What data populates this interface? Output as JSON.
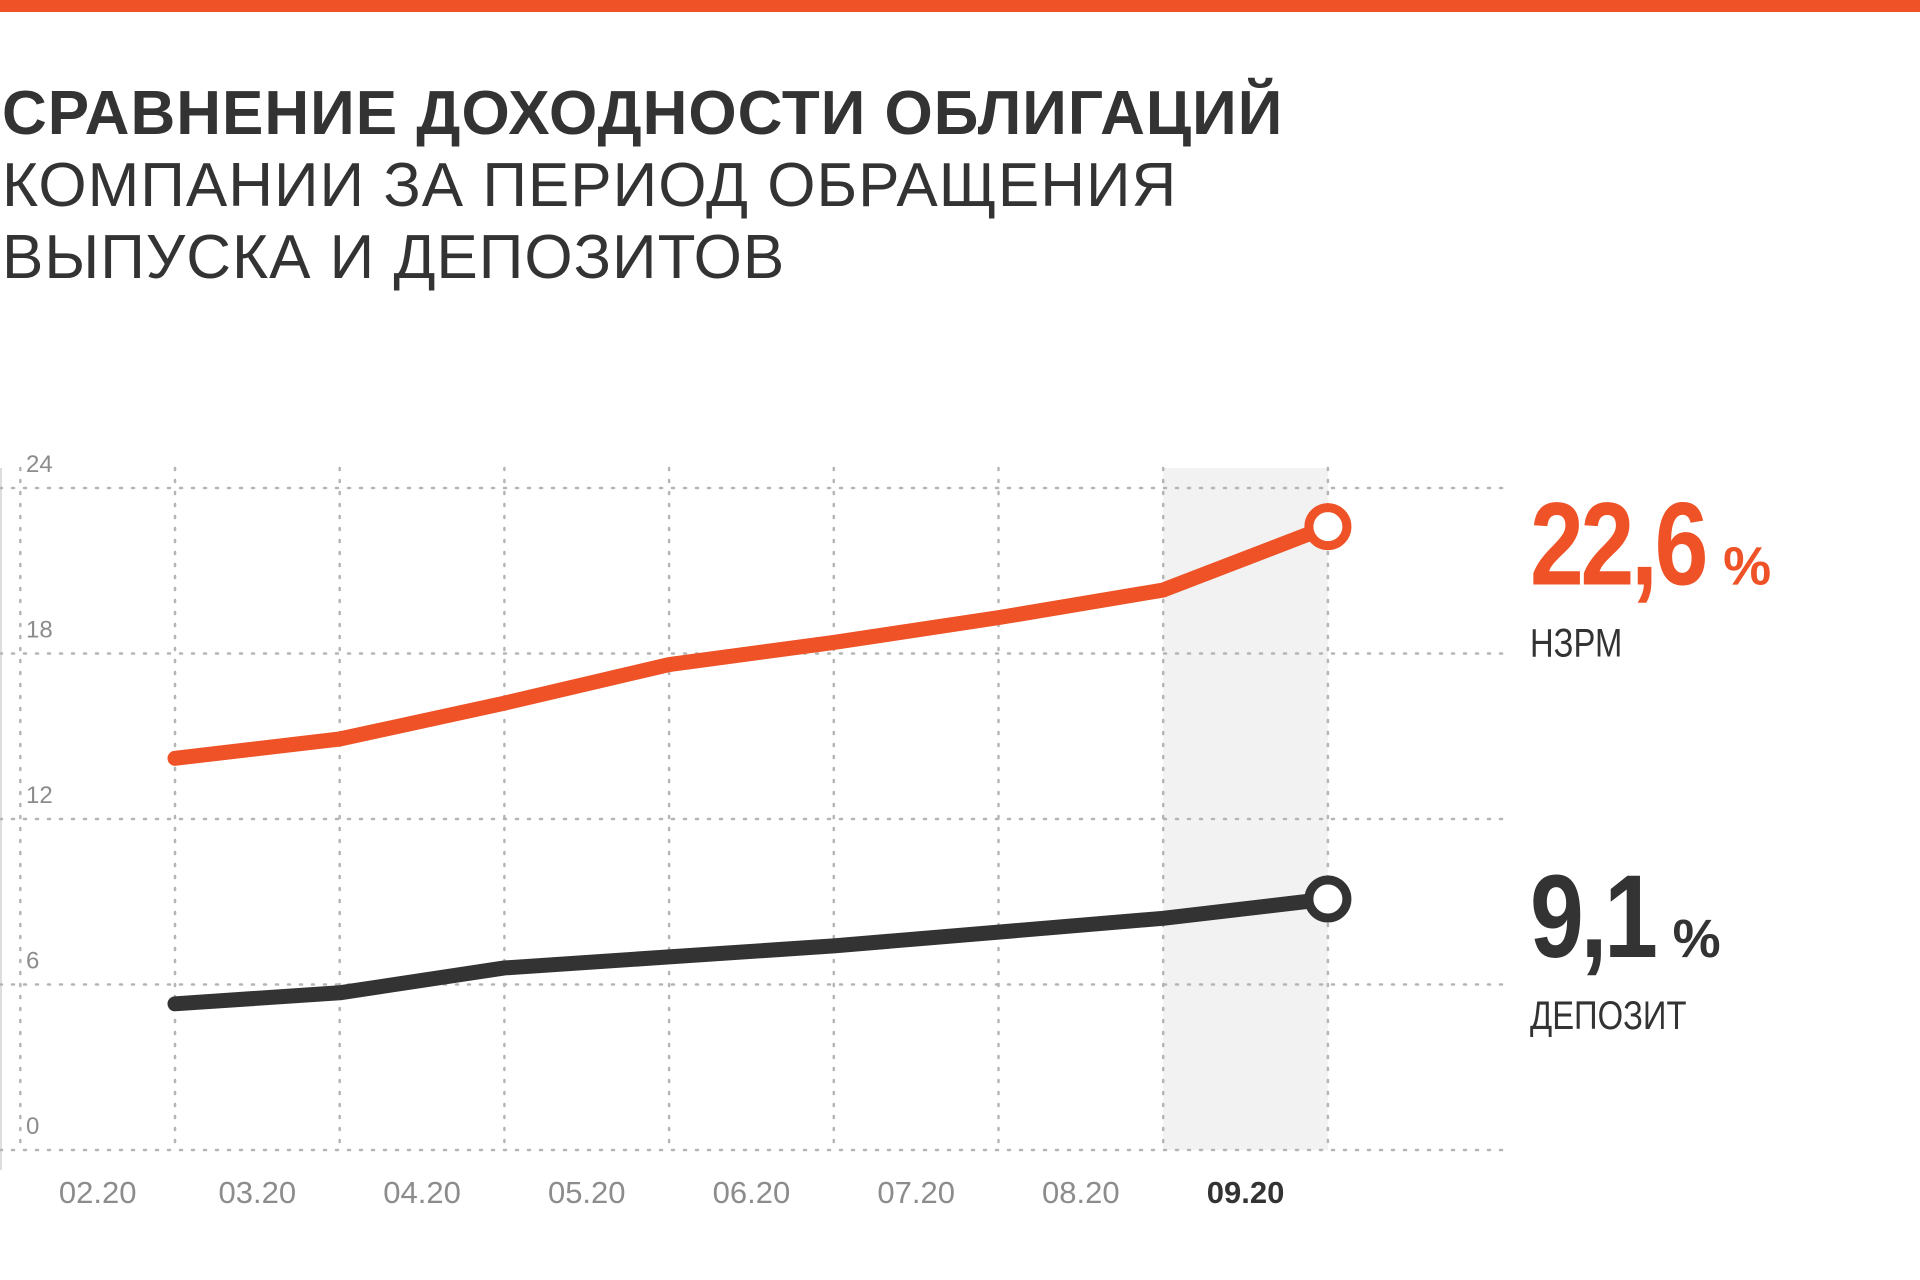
{
  "colors": {
    "accent": "#EE5226",
    "dark": "#333333",
    "grid": "#B5B5B5",
    "tick_text": "#8C8C8C",
    "highlight_bg": "#F2F2F2"
  },
  "title": {
    "line1": "СРАВНЕНИЕ ДОХОДНОСТИ ОБЛИГАЦИЙ",
    "line2": "КОМПАНИИ ЗА ПЕРИОД ОБРАЩЕНИЯ",
    "line3": "ВЫПУСКА И ДЕПОЗИТОВ"
  },
  "chart_data": {
    "type": "line",
    "categories": [
      "02.20",
      "03.20",
      "04.20",
      "05.20",
      "06.20",
      "07.20",
      "08.20",
      "09.20"
    ],
    "highlighted_category": "09.20",
    "y_ticks": [
      "24",
      "18",
      "12",
      "6",
      "0"
    ],
    "ylim": [
      0,
      24
    ],
    "grid": true,
    "series": [
      {
        "name": "НЗРМ",
        "color": "#EE5226",
        "values": [
          14.2,
          14.9,
          16.2,
          17.6,
          18.4,
          19.3,
          20.3,
          22.6
        ],
        "end_label_value": "22,6",
        "end_label_unit": "%"
      },
      {
        "name": "ДЕПОЗИТ",
        "color": "#333333",
        "values": [
          5.3,
          5.7,
          6.6,
          7.0,
          7.4,
          7.9,
          8.4,
          9.1
        ],
        "end_label_value": "9,1",
        "end_label_unit": "%"
      }
    ]
  }
}
